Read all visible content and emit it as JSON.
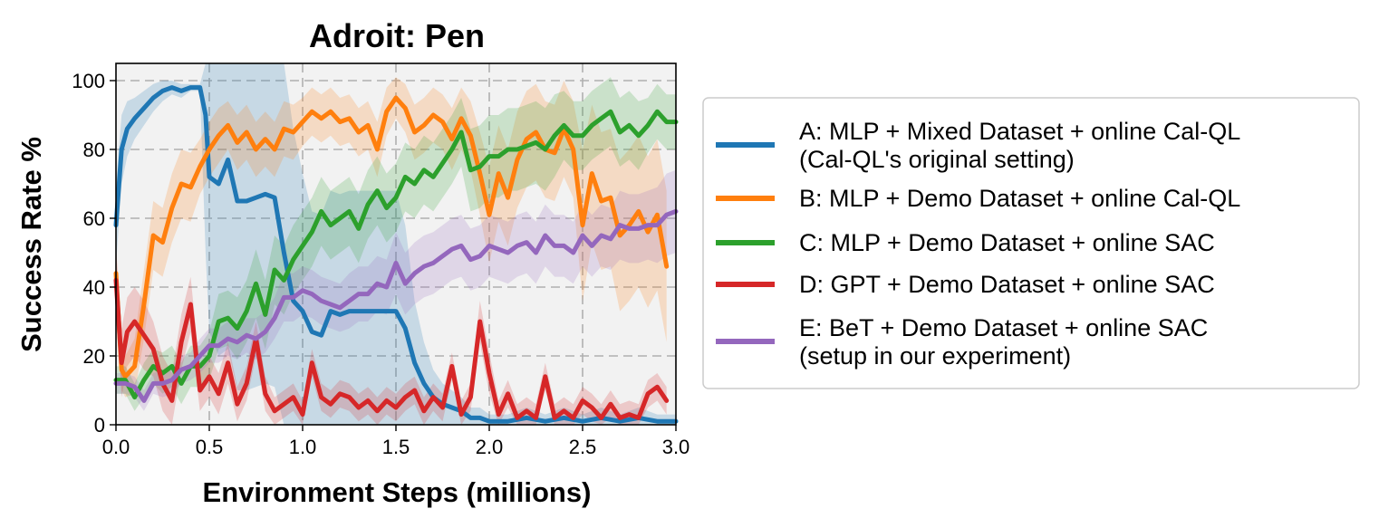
{
  "chart_data": {
    "type": "line",
    "title": "Adroit: Pen",
    "xlabel": "Environment Steps (millions)",
    "ylabel": "Success Rate %",
    "xlim": [
      0,
      3.0
    ],
    "ylim": [
      0,
      105
    ],
    "xticks": [
      "0.0",
      "0.5",
      "1.0",
      "1.5",
      "2.0",
      "2.5",
      "3.0"
    ],
    "yticks": [
      "0",
      "20",
      "40",
      "60",
      "80",
      "100"
    ],
    "grid": true,
    "legend_position": "outside-right",
    "series": [
      {
        "name": "A: MLP + Mixed Dataset + online Cal-QL",
        "name_line2": "(Cal-QL's original setting)",
        "color": "#1f77b4",
        "x": [
          0.0,
          0.03,
          0.06,
          0.1,
          0.15,
          0.2,
          0.25,
          0.3,
          0.35,
          0.4,
          0.45,
          0.48,
          0.5,
          0.55,
          0.6,
          0.65,
          0.7,
          0.75,
          0.8,
          0.85,
          0.9,
          0.95,
          1.0,
          1.05,
          1.1,
          1.15,
          1.2,
          1.25,
          1.3,
          1.4,
          1.5,
          1.55,
          1.6,
          1.65,
          1.7,
          1.75,
          1.8,
          1.85,
          1.9,
          1.95,
          2.0,
          2.1,
          2.2,
          2.3,
          2.4,
          2.5,
          2.6,
          2.7,
          2.8,
          2.9,
          3.0
        ],
        "y": [
          58,
          80,
          86,
          89,
          92,
          95,
          97,
          98,
          97,
          98,
          98,
          90,
          72,
          70,
          77,
          65,
          65,
          66,
          67,
          66,
          50,
          36,
          33,
          27,
          26,
          33,
          32,
          33,
          33,
          33,
          33,
          28,
          18,
          12,
          8,
          6,
          5,
          4,
          2,
          2,
          1,
          1,
          2,
          1,
          2,
          1,
          2,
          1,
          2,
          1,
          1
        ],
        "band": [
          12,
          10,
          8,
          6,
          5,
          4,
          3,
          2,
          2,
          1,
          1,
          40,
          45,
          50,
          55,
          55,
          55,
          55,
          55,
          55,
          55,
          50,
          40,
          35,
          35,
          35,
          35,
          35,
          35,
          35,
          35,
          30,
          18,
          12,
          8,
          6,
          5,
          4,
          3,
          3,
          2,
          2,
          3,
          2,
          3,
          2,
          3,
          2,
          3,
          2,
          2
        ]
      },
      {
        "name": "B: MLP + Demo Dataset + online Cal-QL",
        "color": "#ff7f0e",
        "x": [
          0.0,
          0.03,
          0.05,
          0.1,
          0.15,
          0.2,
          0.25,
          0.3,
          0.35,
          0.4,
          0.45,
          0.5,
          0.55,
          0.6,
          0.65,
          0.7,
          0.75,
          0.8,
          0.85,
          0.9,
          0.95,
          1.0,
          1.05,
          1.1,
          1.15,
          1.2,
          1.25,
          1.3,
          1.35,
          1.4,
          1.45,
          1.5,
          1.55,
          1.6,
          1.65,
          1.7,
          1.75,
          1.8,
          1.85,
          1.9,
          1.95,
          2.0,
          2.05,
          2.1,
          2.15,
          2.2,
          2.25,
          2.3,
          2.35,
          2.4,
          2.45,
          2.5,
          2.55,
          2.6,
          2.65,
          2.7,
          2.75,
          2.8,
          2.85,
          2.9,
          2.95
        ],
        "y": [
          44,
          16,
          14,
          17,
          35,
          55,
          53,
          63,
          70,
          69,
          75,
          80,
          84,
          87,
          82,
          85,
          80,
          83,
          80,
          86,
          85,
          88,
          91,
          89,
          91,
          88,
          89,
          85,
          87,
          80,
          91,
          95,
          92,
          85,
          87,
          90,
          88,
          83,
          89,
          84,
          73,
          61,
          73,
          66,
          77,
          83,
          85,
          80,
          79,
          86,
          80,
          58,
          73,
          65,
          66,
          55,
          58,
          62,
          56,
          61,
          46
        ],
        "band": [
          8,
          6,
          6,
          8,
          10,
          10,
          10,
          10,
          10,
          10,
          8,
          8,
          8,
          7,
          8,
          8,
          8,
          8,
          8,
          8,
          8,
          7,
          7,
          7,
          7,
          7,
          7,
          7,
          7,
          8,
          7,
          6,
          7,
          8,
          8,
          8,
          8,
          9,
          9,
          10,
          12,
          14,
          14,
          14,
          14,
          14,
          14,
          14,
          14,
          14,
          14,
          22,
          20,
          20,
          20,
          22,
          22,
          22,
          22,
          22,
          22
        ]
      },
      {
        "name": "C: MLP + Demo Dataset + online SAC",
        "color": "#2ca02c",
        "x": [
          0.0,
          0.05,
          0.1,
          0.15,
          0.2,
          0.25,
          0.3,
          0.35,
          0.4,
          0.45,
          0.5,
          0.55,
          0.6,
          0.65,
          0.7,
          0.75,
          0.8,
          0.85,
          0.9,
          0.95,
          1.0,
          1.05,
          1.1,
          1.15,
          1.2,
          1.25,
          1.3,
          1.35,
          1.4,
          1.45,
          1.5,
          1.55,
          1.6,
          1.65,
          1.7,
          1.75,
          1.8,
          1.85,
          1.9,
          1.95,
          2.0,
          2.05,
          2.1,
          2.15,
          2.2,
          2.25,
          2.3,
          2.35,
          2.4,
          2.45,
          2.5,
          2.55,
          2.6,
          2.65,
          2.7,
          2.75,
          2.8,
          2.85,
          2.9,
          2.95,
          3.0
        ],
        "y": [
          13,
          13,
          8,
          13,
          17,
          15,
          17,
          12,
          17,
          17,
          20,
          30,
          31,
          28,
          33,
          41,
          32,
          45,
          42,
          48,
          52,
          56,
          62,
          58,
          60,
          62,
          57,
          64,
          68,
          63,
          66,
          72,
          70,
          74,
          72,
          76,
          80,
          85,
          74,
          75,
          78,
          78,
          80,
          80,
          81,
          82,
          80,
          84,
          87,
          84,
          84,
          87,
          89,
          91,
          85,
          87,
          84,
          87,
          91,
          88,
          88
        ],
        "band": [
          4,
          4,
          4,
          5,
          5,
          6,
          6,
          6,
          6,
          6,
          7,
          8,
          8,
          9,
          9,
          10,
          10,
          10,
          10,
          10,
          10,
          10,
          10,
          10,
          10,
          10,
          10,
          10,
          10,
          10,
          10,
          10,
          10,
          10,
          10,
          10,
          10,
          10,
          12,
          12,
          12,
          12,
          12,
          12,
          12,
          12,
          12,
          12,
          10,
          10,
          10,
          10,
          10,
          10,
          10,
          10,
          10,
          8,
          8,
          8,
          8
        ]
      },
      {
        "name": "D: GPT + Demo Dataset + online SAC",
        "color": "#d62728",
        "x": [
          0.0,
          0.03,
          0.06,
          0.1,
          0.15,
          0.2,
          0.25,
          0.3,
          0.35,
          0.4,
          0.45,
          0.5,
          0.55,
          0.6,
          0.65,
          0.7,
          0.75,
          0.8,
          0.85,
          0.9,
          0.95,
          1.0,
          1.05,
          1.1,
          1.15,
          1.2,
          1.25,
          1.3,
          1.35,
          1.4,
          1.45,
          1.5,
          1.55,
          1.6,
          1.65,
          1.7,
          1.75,
          1.8,
          1.85,
          1.9,
          1.95,
          2.0,
          2.05,
          2.1,
          2.15,
          2.2,
          2.25,
          2.3,
          2.35,
          2.4,
          2.45,
          2.5,
          2.55,
          2.6,
          2.65,
          2.7,
          2.75,
          2.8,
          2.85,
          2.9,
          2.95
        ],
        "y": [
          42,
          18,
          27,
          30,
          26,
          22,
          12,
          7,
          24,
          35,
          10,
          14,
          9,
          18,
          6,
          12,
          25,
          9,
          4,
          6,
          8,
          3,
          18,
          8,
          6,
          9,
          8,
          5,
          7,
          4,
          7,
          5,
          8,
          10,
          4,
          8,
          5,
          17,
          3,
          8,
          30,
          15,
          3,
          9,
          2,
          4,
          2,
          14,
          2,
          4,
          2,
          7,
          5,
          2,
          6,
          2,
          3,
          2,
          9,
          11,
          7
        ],
        "band": [
          10,
          10,
          10,
          10,
          10,
          8,
          8,
          8,
          8,
          8,
          6,
          6,
          6,
          6,
          5,
          5,
          5,
          5,
          4,
          4,
          4,
          4,
          4,
          4,
          4,
          4,
          4,
          4,
          4,
          4,
          4,
          4,
          4,
          4,
          4,
          4,
          4,
          4,
          4,
          4,
          6,
          6,
          4,
          4,
          4,
          4,
          4,
          4,
          4,
          4,
          4,
          4,
          4,
          4,
          4,
          4,
          4,
          4,
          4,
          4,
          4
        ]
      },
      {
        "name": "E: BeT + Demo Dataset + online SAC",
        "name_line2": "(setup in our experiment)",
        "color": "#9467bd",
        "x": [
          0.0,
          0.05,
          0.1,
          0.15,
          0.2,
          0.25,
          0.3,
          0.35,
          0.4,
          0.45,
          0.5,
          0.55,
          0.6,
          0.65,
          0.7,
          0.75,
          0.8,
          0.85,
          0.9,
          0.95,
          1.0,
          1.05,
          1.1,
          1.15,
          1.2,
          1.25,
          1.3,
          1.35,
          1.4,
          1.45,
          1.5,
          1.55,
          1.6,
          1.65,
          1.7,
          1.75,
          1.8,
          1.85,
          1.9,
          1.95,
          2.0,
          2.05,
          2.1,
          2.15,
          2.2,
          2.25,
          2.3,
          2.35,
          2.4,
          2.45,
          2.5,
          2.55,
          2.6,
          2.65,
          2.7,
          2.75,
          2.8,
          2.85,
          2.9,
          2.95,
          3.0
        ],
        "y": [
          12,
          12,
          11,
          7,
          12,
          12,
          13,
          16,
          17,
          20,
          23,
          23,
          25,
          24,
          26,
          25,
          27,
          31,
          37,
          37,
          39,
          38,
          36,
          35,
          34,
          36,
          38,
          38,
          41,
          40,
          47,
          41,
          44,
          46,
          47,
          49,
          51,
          52,
          48,
          49,
          52,
          51,
          50,
          52,
          53,
          50,
          55,
          52,
          52,
          50,
          55,
          52,
          55,
          54,
          58,
          57,
          57,
          58,
          58,
          61,
          62
        ],
        "band": [
          3,
          3,
          3,
          3,
          3,
          4,
          4,
          4,
          4,
          5,
          5,
          5,
          5,
          5,
          5,
          6,
          6,
          6,
          7,
          7,
          7,
          7,
          7,
          7,
          7,
          8,
          8,
          8,
          8,
          8,
          9,
          9,
          9,
          9,
          9,
          9,
          9,
          9,
          9,
          9,
          9,
          9,
          9,
          9,
          9,
          9,
          9,
          9,
          9,
          9,
          9,
          9,
          9,
          9,
          10,
          10,
          10,
          10,
          11,
          12,
          12
        ]
      }
    ]
  }
}
